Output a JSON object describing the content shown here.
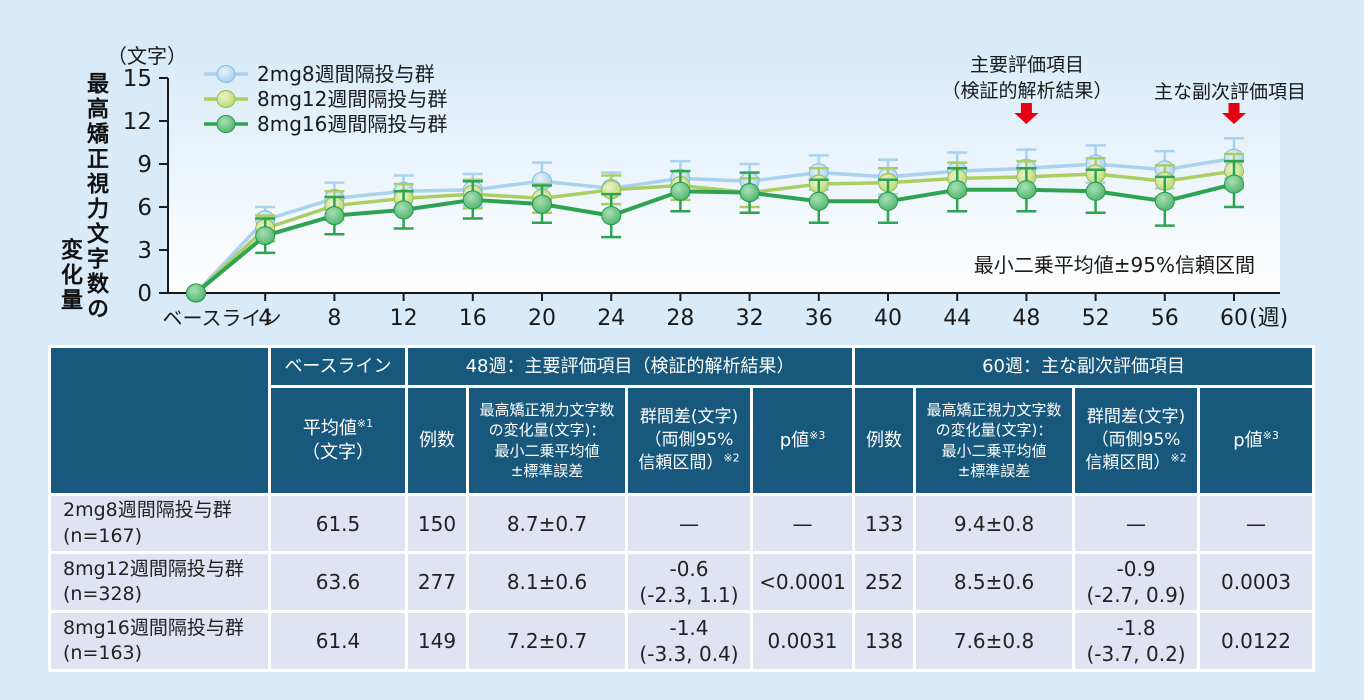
{
  "page": {
    "background": "#d9ebf8"
  },
  "chart_data": {
    "type": "line",
    "title": "",
    "ylabel": "最高矯正視力文字数の変化量",
    "y_unit": "（文字）",
    "x_unit_suffix": "(週)",
    "ylim": [
      0,
      15
    ],
    "yticks": [
      0,
      3,
      6,
      9,
      12,
      15
    ],
    "x": [
      0,
      4,
      8,
      12,
      16,
      20,
      24,
      28,
      32,
      36,
      40,
      44,
      48,
      52,
      56,
      60
    ],
    "x_tick_labels": [
      "ベースライン",
      "4",
      "8",
      "12",
      "16",
      "20",
      "24",
      "28",
      "32",
      "36",
      "40",
      "44",
      "48",
      "52",
      "56",
      "60"
    ],
    "error_bar_note": "最小二乗平均値±95%信頼区間",
    "legend_position": "top-left",
    "grid": false,
    "series": [
      {
        "name": "2mg8週間隔投与群",
        "line_color": "#a8d2ee",
        "marker_center": "#e9f4fc",
        "marker_edge": "#9bcbe9",
        "marker_stroke": "#85bce0",
        "values": [
          0,
          5.1,
          6.6,
          7.1,
          7.2,
          7.8,
          7.3,
          8.0,
          7.8,
          8.4,
          8.1,
          8.5,
          8.7,
          9.0,
          8.6,
          9.4
        ],
        "ci_half_width": [
          0,
          0.9,
          1.1,
          1.1,
          1.1,
          1.3,
          1.1,
          1.2,
          1.2,
          1.2,
          1.2,
          1.3,
          1.3,
          1.3,
          1.3,
          1.4
        ]
      },
      {
        "name": "8mg12週間隔投与群",
        "line_color": "#abce62",
        "marker_center": "#ecf4cb",
        "marker_edge": "#b4d66c",
        "marker_stroke": "#94bd4e",
        "values": [
          0,
          4.5,
          6.1,
          6.6,
          6.9,
          6.6,
          7.2,
          7.5,
          7.0,
          7.6,
          7.7,
          8.0,
          8.1,
          8.3,
          7.8,
          8.5
        ],
        "ci_half_width": [
          0,
          0.9,
          1.0,
          1.0,
          1.0,
          1.0,
          1.0,
          1.0,
          1.0,
          1.1,
          1.0,
          1.1,
          1.1,
          1.1,
          1.1,
          1.2
        ]
      },
      {
        "name": "8mg16週間隔投与群",
        "line_color": "#2ea351",
        "marker_center": "#a8dfb4",
        "marker_edge": "#49b267",
        "marker_stroke": "#23984a",
        "values": [
          0,
          4.0,
          5.4,
          5.8,
          6.5,
          6.2,
          5.4,
          7.1,
          7.0,
          6.4,
          6.4,
          7.2,
          7.2,
          7.1,
          6.4,
          7.6
        ],
        "ci_half_width": [
          0,
          1.2,
          1.3,
          1.3,
          1.3,
          1.3,
          1.5,
          1.4,
          1.4,
          1.5,
          1.5,
          1.5,
          1.5,
          1.5,
          1.7,
          1.6
        ]
      }
    ],
    "annotation_arrows": {
      "color": "#e60012",
      "week_indices": [
        12,
        15
      ]
    }
  },
  "chart": {
    "unit_label": "（文字）",
    "y_title_main": "最高矯正視力文字数の",
    "y_title_sub": "変化量",
    "note": "最小二乗平均値±95%信頼区間",
    "annotations": {
      "primary_line1": "主要評価項目",
      "primary_line2": "（検証的解析結果）",
      "secondary": "主な副次評価項目"
    }
  },
  "table": {
    "header": {
      "baseline": "ベースライン",
      "week48": "48週：主要評価項目（検証的解析結果）",
      "week60": "60週：主な副次評価項目",
      "mean": "平均値",
      "mean_sup": "※1",
      "mean_unit": "（文字）",
      "n": "例数",
      "change": "最高矯正視力文字数\nの変化量(文字)：\n最小二乗平均値\n±標準誤差",
      "diff": "群間差(文字)\n（両側95%\n信頼区間）",
      "diff_sup": "※2",
      "pvalue": "p値",
      "pvalue_sup": "※3"
    },
    "rows": [
      {
        "label": "2mg8週間隔投与群\n(n=167)",
        "baseline_mean": "61.5",
        "w48": {
          "n": "150",
          "change": "8.7±0.7",
          "diff": "—",
          "p": "—"
        },
        "w60": {
          "n": "133",
          "change": "9.4±0.8",
          "diff": "—",
          "p": "—"
        }
      },
      {
        "label": "8mg12週間隔投与群\n(n=328)",
        "baseline_mean": "63.6",
        "w48": {
          "n": "277",
          "change": "8.1±0.6",
          "diff": "-0.6\n(-2.3, 1.1)",
          "p": "<0.0001"
        },
        "w60": {
          "n": "252",
          "change": "8.5±0.6",
          "diff": "-0.9\n(-2.7, 0.9)",
          "p": "0.0003"
        }
      },
      {
        "label": "8mg16週間隔投与群\n(n=163)",
        "baseline_mean": "61.4",
        "w48": {
          "n": "149",
          "change": "7.2±0.7",
          "diff": "-1.4\n(-3.3, 0.4)",
          "p": "0.0031"
        },
        "w60": {
          "n": "138",
          "change": "7.6±0.8",
          "diff": "-1.8\n(-3.7, 0.2)",
          "p": "0.0122"
        }
      }
    ]
  }
}
